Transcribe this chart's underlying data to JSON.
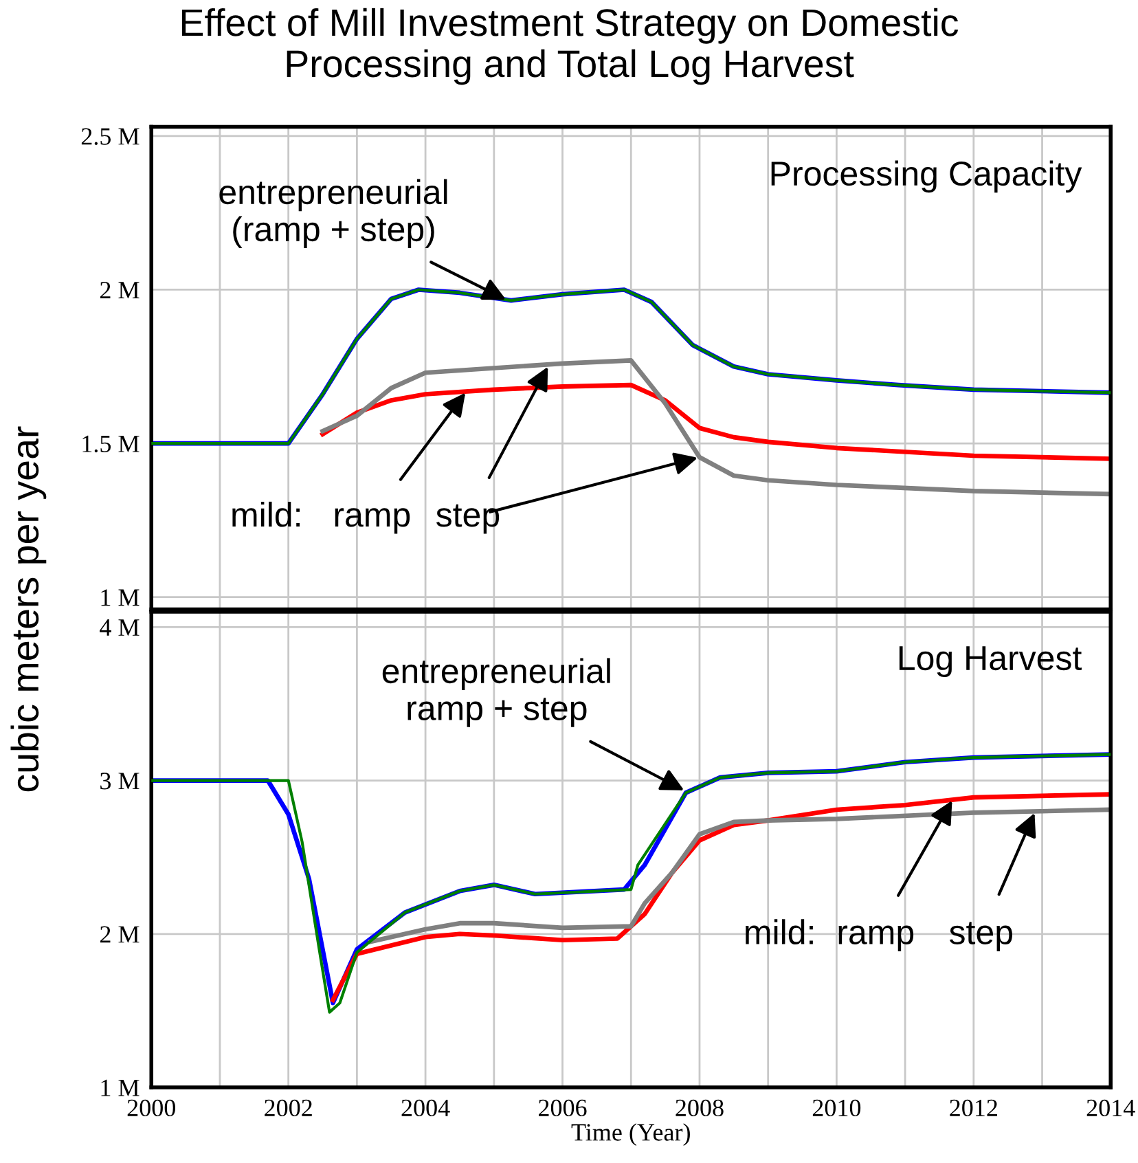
{
  "chart_data": [
    {
      "type": "line",
      "title": "Effect of Mill Investment Strategy on Domestic\nProcessing and Total Log Harvest",
      "subtitle": "Processing Capacity",
      "ylabel": "cubic meters per year",
      "xlim": [
        2000,
        2014
      ],
      "xticks": [
        2000,
        {
          "value": 2001,
          "label": null
        },
        2002,
        {
          "value": 2003,
          "label": null
        },
        2004,
        {
          "value": 2005,
          "label": null
        },
        2006,
        {
          "value": 2007,
          "label": null
        },
        2008,
        {
          "value": 2009,
          "label": null
        },
        2010,
        {
          "value": 2011,
          "label": null
        },
        2012,
        {
          "value": 2013,
          "label": null
        },
        2014
      ],
      "ylim": [
        0.96,
        2.53
      ],
      "yticks": [
        {
          "value": 1,
          "label": "1 M"
        },
        {
          "value": 1.5,
          "label": "1.5 M"
        },
        {
          "value": 2,
          "label": "2 M"
        },
        {
          "value": 2.5,
          "label": "2.5 M"
        }
      ],
      "tick_labels": "y",
      "grid": true,
      "legend": false,
      "series": [
        {
          "color": "#008000",
          "x": [
            2000,
            2002,
            2002.5,
            2003,
            2003.5,
            2003.9,
            2004.5,
            2005.25,
            2006,
            2006.9,
            2007.3,
            2007.9,
            2008.5,
            2009,
            2010,
            2010.9,
            2012,
            2014
          ],
          "values": [
            1.5,
            1.5,
            1.66,
            1.84,
            1.97,
            2.0,
            1.99,
            1.965,
            1.985,
            2.0,
            1.96,
            1.82,
            1.75,
            1.725,
            1.705,
            1.69,
            1.675,
            1.665
          ]
        },
        {
          "color": "#0000ff",
          "x": [
            2000,
            2002,
            2002.5,
            2003,
            2003.5,
            2003.9,
            2004.5,
            2005.25,
            2006,
            2006.9,
            2007.3,
            2007.9,
            2008.5,
            2009,
            2010,
            2010.9,
            2012,
            2014
          ],
          "values": [
            1.5,
            1.5,
            1.66,
            1.84,
            1.97,
            2.0,
            1.99,
            1.965,
            1.985,
            2.0,
            1.96,
            1.82,
            1.75,
            1.725,
            1.705,
            1.69,
            1.675,
            1.665
          ]
        },
        {
          "color": "#ff0000",
          "x": [
            2002.5,
            2003,
            2003.5,
            2004,
            2005,
            2006,
            2007,
            2007.5,
            2008,
            2008.5,
            2009,
            2010,
            2012,
            2014
          ],
          "values": [
            1.53,
            1.6,
            1.64,
            1.66,
            1.675,
            1.685,
            1.69,
            1.64,
            1.55,
            1.52,
            1.505,
            1.485,
            1.46,
            1.45
          ]
        },
        {
          "color": "#808080",
          "x": [
            2002.5,
            2003,
            2003.5,
            2004,
            2005,
            2006,
            2007,
            2007.5,
            2008,
            2008.5,
            2009,
            2010,
            2012,
            2014
          ],
          "values": [
            1.54,
            1.59,
            1.68,
            1.73,
            1.745,
            1.76,
            1.77,
            1.63,
            1.455,
            1.395,
            1.38,
            1.365,
            1.345,
            1.335
          ]
        }
      ],
      "annotations": [
        {
          "text": "entrepreneurial\n(ramp + step)",
          "x": 2005.2,
          "y": 1.965
        },
        "mild:",
        {
          "text": "ramp",
          "x": 2004.6,
          "y": 1.67
        },
        {
          "text": "step",
          "x": 2005.8,
          "y": 1.755
        }
      ]
    },
    {
      "type": "line",
      "subtitle": "Log Harvest",
      "xlabel": "Time (Year)",
      "xlim": [
        2000,
        2014
      ],
      "xticks": [
        2000,
        {
          "value": 2001,
          "label": null
        },
        2002,
        {
          "value": 2003,
          "label": null
        },
        2004,
        {
          "value": 2005,
          "label": null
        },
        2006,
        {
          "value": 2007,
          "label": null
        },
        2008,
        {
          "value": 2009,
          "label": null
        },
        2010,
        {
          "value": 2011,
          "label": null
        },
        2012,
        {
          "value": 2013,
          "label": null
        },
        2014
      ],
      "ylim": [
        1,
        4.1
      ],
      "yticks": [
        {
          "value": 1,
          "label": "1 M"
        },
        {
          "value": 2,
          "label": "2 M"
        },
        {
          "value": 3,
          "label": "3 M"
        },
        {
          "value": 4,
          "label": "4 M"
        }
      ],
      "grid": true,
      "legend": false,
      "series": [
        {
          "color": "#008000",
          "x": [
            2000,
            2002,
            2002.2,
            2002.45,
            2002.6,
            2002.75,
            2003,
            2003.7,
            2004.5,
            2005,
            2005.6,
            2007,
            2007.1,
            2007.8,
            2008.3,
            2009,
            2010,
            2011,
            2012,
            2014
          ],
          "values": [
            3.0,
            3.0,
            2.6,
            1.9,
            1.49,
            1.55,
            1.88,
            2.14,
            2.28,
            2.32,
            2.26,
            2.29,
            2.45,
            2.92,
            3.02,
            3.05,
            3.06,
            3.12,
            3.15,
            3.17
          ]
        },
        {
          "color": "#0000ff",
          "x": [
            2000,
            2001.7,
            2002,
            2002.3,
            2002.65,
            2003,
            2003.7,
            2004.5,
            2005,
            2005.6,
            2006.9,
            2007.2,
            2007.8,
            2008.3,
            2009,
            2010,
            2011,
            2012,
            2014
          ],
          "values": [
            3.0,
            3.0,
            2.78,
            2.36,
            1.55,
            1.9,
            2.14,
            2.28,
            2.32,
            2.26,
            2.29,
            2.45,
            2.92,
            3.02,
            3.05,
            3.06,
            3.12,
            3.15,
            3.17
          ]
        },
        {
          "color": "#ff0000",
          "x": [
            2002.65,
            2003,
            2004,
            2004.5,
            2005,
            2006,
            2006.8,
            2007.2,
            2007.6,
            2008,
            2008.5,
            2009,
            2010,
            2011,
            2012,
            2014
          ],
          "values": [
            1.57,
            1.87,
            1.98,
            2.0,
            1.99,
            1.96,
            1.97,
            2.13,
            2.4,
            2.61,
            2.71,
            2.74,
            2.81,
            2.84,
            2.89,
            2.91
          ]
        },
        {
          "color": "#808080",
          "x": [
            2003.2,
            2004,
            2004.5,
            2005,
            2006,
            2007,
            2007.2,
            2007.6,
            2008,
            2008.5,
            2009,
            2010,
            2012,
            2014
          ],
          "values": [
            1.95,
            2.03,
            2.07,
            2.07,
            2.04,
            2.05,
            2.2,
            2.4,
            2.65,
            2.73,
            2.74,
            2.75,
            2.79,
            2.81
          ]
        }
      ],
      "annotations": [
        {
          "text": "entrepreneurial\nramp + step",
          "x": 2007.8,
          "y": 2.93
        },
        "mild:",
        {
          "text": "ramp",
          "x": 2011.7,
          "y": 2.88
        },
        {
          "text": "step",
          "x": 2012.9,
          "y": 2.8
        }
      ]
    }
  ]
}
